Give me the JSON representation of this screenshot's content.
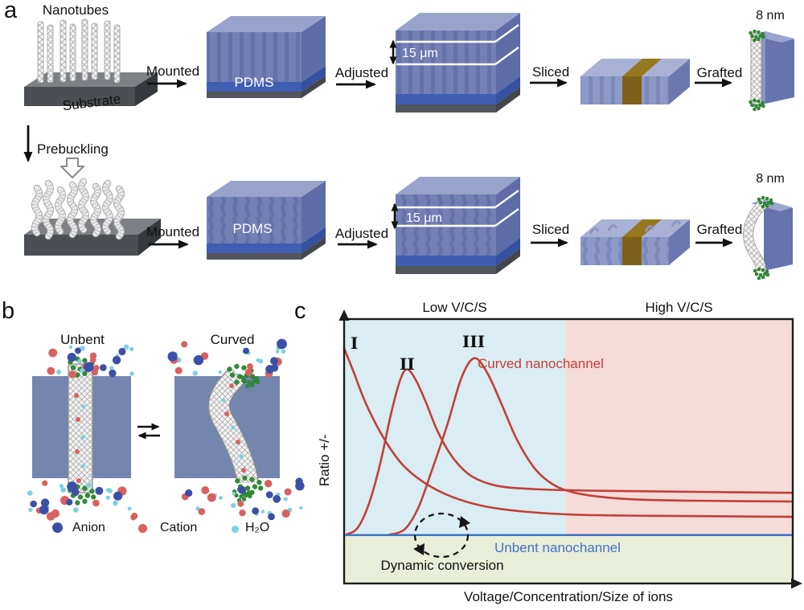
{
  "panel_a": {
    "label": "a",
    "nanotubes_label": "Nanotubes",
    "substrate_label": "Substrate",
    "prebuckling_label": "Prebuckling",
    "pdms_label": "PDMS",
    "thickness_label": "15 μm",
    "diameter_label": "8 nm",
    "steps": {
      "mounted": "Mounted",
      "adjusted": "Adjusted",
      "sliced": "Sliced",
      "grafted": "Grafted"
    }
  },
  "panel_b": {
    "label": "b",
    "unbent_label": "Unbent",
    "curved_label": "Curved",
    "legend": [
      {
        "name": "Anion",
        "color": "#3d4ea6"
      },
      {
        "name": "Cation",
        "color": "#d96060"
      },
      {
        "name": "H₂O",
        "color": "#7fd0e0"
      }
    ]
  },
  "panel_c": {
    "label": "c"
  },
  "chart_data": {
    "type": "line",
    "title": "",
    "xlabel": "Voltage/Concentration/Size of ions",
    "ylabel": "Ratio +/-",
    "coords_note": "points are [x,y] normalized to the plot area; y=0 is plot top, y=1 is plot bottom; schematic axes without numeric ticks",
    "regions": [
      {
        "label": "Low V/C/S",
        "color": "#d9edf2",
        "x_range": [
          0,
          0.493
        ]
      },
      {
        "label": "High V/C/S",
        "color": "#f6dcd8",
        "x_range": [
          0.493,
          1
        ]
      },
      {
        "label": "",
        "color": "#e9eed9",
        "note": "zone below unbent baseline"
      }
    ],
    "baseline_y": 0.817,
    "series": [
      {
        "name": "I",
        "color": "#c23f3a",
        "points": [
          [
            0,
            0.11
          ],
          [
            0.02,
            0.195
          ],
          [
            0.05,
            0.325
          ],
          [
            0.09,
            0.455
          ],
          [
            0.13,
            0.55
          ],
          [
            0.18,
            0.62
          ],
          [
            0.24,
            0.672
          ],
          [
            0.31,
            0.707
          ],
          [
            0.4,
            0.728
          ],
          [
            0.52,
            0.74
          ],
          [
            0.68,
            0.744
          ],
          [
            0.85,
            0.746
          ],
          [
            1,
            0.748
          ]
        ]
      },
      {
        "name": "II",
        "color": "#c23f3a",
        "points": [
          [
            0.005,
            0.815
          ],
          [
            0.03,
            0.79
          ],
          [
            0.055,
            0.7
          ],
          [
            0.08,
            0.55
          ],
          [
            0.105,
            0.355
          ],
          [
            0.125,
            0.23
          ],
          [
            0.14,
            0.19
          ],
          [
            0.158,
            0.225
          ],
          [
            0.18,
            0.305
          ],
          [
            0.21,
            0.43
          ],
          [
            0.245,
            0.53
          ],
          [
            0.285,
            0.595
          ],
          [
            0.34,
            0.63
          ],
          [
            0.42,
            0.643
          ],
          [
            0.55,
            0.649
          ],
          [
            0.75,
            0.653
          ],
          [
            1,
            0.657
          ]
        ]
      },
      {
        "name": "III",
        "color": "#c23f3a",
        "points": [
          [
            0.1,
            0.816
          ],
          [
            0.135,
            0.795
          ],
          [
            0.165,
            0.715
          ],
          [
            0.195,
            0.575
          ],
          [
            0.23,
            0.4
          ],
          [
            0.262,
            0.22
          ],
          [
            0.29,
            0.148
          ],
          [
            0.318,
            0.2
          ],
          [
            0.348,
            0.31
          ],
          [
            0.385,
            0.455
          ],
          [
            0.425,
            0.565
          ],
          [
            0.465,
            0.625
          ],
          [
            0.51,
            0.655
          ],
          [
            0.57,
            0.672
          ],
          [
            0.65,
            0.682
          ],
          [
            0.78,
            0.687
          ],
          [
            1,
            0.69
          ]
        ]
      },
      {
        "name": "Unbent nanochannel",
        "color": "#3f74c8",
        "points": [
          [
            0.003,
            0.817
          ],
          [
            1,
            0.817
          ]
        ]
      }
    ],
    "annotations": {
      "curved_label": "Curved nanochannel",
      "unbent_label": "Unbent nanochannel",
      "dynamic_label": "Dynamic conversion"
    }
  }
}
